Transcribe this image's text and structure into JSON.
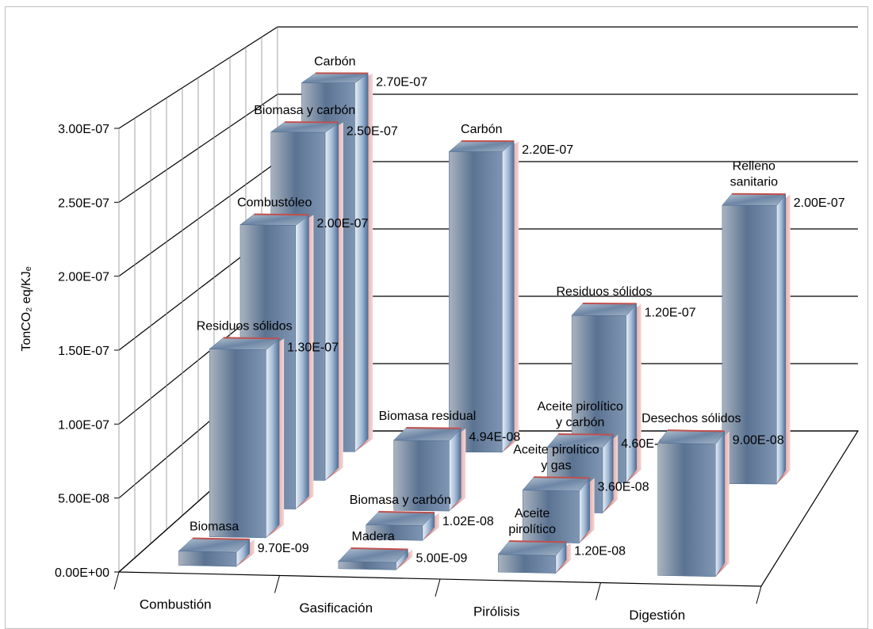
{
  "chart_data": {
    "type": "bar",
    "variant": "3d-column",
    "ylabel": "TonCO₂ eq/KJₑ",
    "ylim": [
      0,
      3e-07
    ],
    "y_ticks": [
      "0.00E+00",
      "5.00E-08",
      "1.00E-07",
      "1.50E-07",
      "2.00E-07",
      "2.50E-07",
      "3.00E-07"
    ],
    "categories": [
      "Combustión",
      "Gasificación",
      "Pirólisis",
      "Digestión"
    ],
    "grid": true,
    "legend": "none",
    "colors": {
      "face": "#6f88a6",
      "highlight": "#e8eef5",
      "side": "#c0504d"
    },
    "bars": [
      {
        "category": "Combustión",
        "depth": 0,
        "name": "Biomasa",
        "value": 9.7e-09,
        "value_label": "9.70E-09"
      },
      {
        "category": "Combustión",
        "depth": 1,
        "name": "Residuos sólidos",
        "value": 1.3e-07,
        "value_label": "1.30E-07"
      },
      {
        "category": "Combustión",
        "depth": 2,
        "name": "Combustóleo",
        "value": 2e-07,
        "value_label": "2.00E-07"
      },
      {
        "category": "Combustión",
        "depth": 3,
        "name": "Biomasa y carbón",
        "value": 2.5e-07,
        "value_label": "2.50E-07"
      },
      {
        "category": "Combustión",
        "depth": 4,
        "name": "Carbón",
        "value": 2.7e-07,
        "value_label": "2.70E-07"
      },
      {
        "category": "Gasificación",
        "depth": 0,
        "name": "Madera",
        "value": 5e-09,
        "value_label": "5.00E-09"
      },
      {
        "category": "Gasificación",
        "depth": 1,
        "name": "Biomasa y carbón",
        "value": 1.02e-08,
        "value_label": "1.02E-08"
      },
      {
        "category": "Gasificación",
        "depth": 2,
        "name": "Biomasa residual",
        "value": 4.94e-08,
        "value_label": "4.94E-08"
      },
      {
        "category": "Gasificación",
        "depth": 4,
        "name": "Carbón",
        "value": 2.2e-07,
        "value_label": "2.20E-07"
      },
      {
        "category": "Pirólisis",
        "depth": 0,
        "name": "Aceite pirolítico",
        "value": 1.2e-08,
        "value_label": "1.20E-08"
      },
      {
        "category": "Pirólisis",
        "depth": 1,
        "name": "Aceite pirolítico y gas",
        "value": 3.6e-08,
        "value_label": "3.60E-08"
      },
      {
        "category": "Pirólisis",
        "depth": 2,
        "name": "Aceite pirolítico y carbón",
        "value": 4.6e-08,
        "value_label": "4.60E-08"
      },
      {
        "category": "Pirólisis",
        "depth": 3,
        "name": "Residuos sólidos",
        "value": 1.2e-07,
        "value_label": "1.20E-07"
      },
      {
        "category": "Digestión",
        "depth": 0,
        "name": "Desechos sólidos",
        "value": 9e-08,
        "value_label": "9.00E-08"
      },
      {
        "category": "Digestión",
        "depth": 3,
        "name": "Relleno sanitario",
        "value": 2e-07,
        "value_label": "2.00E-07"
      }
    ]
  }
}
